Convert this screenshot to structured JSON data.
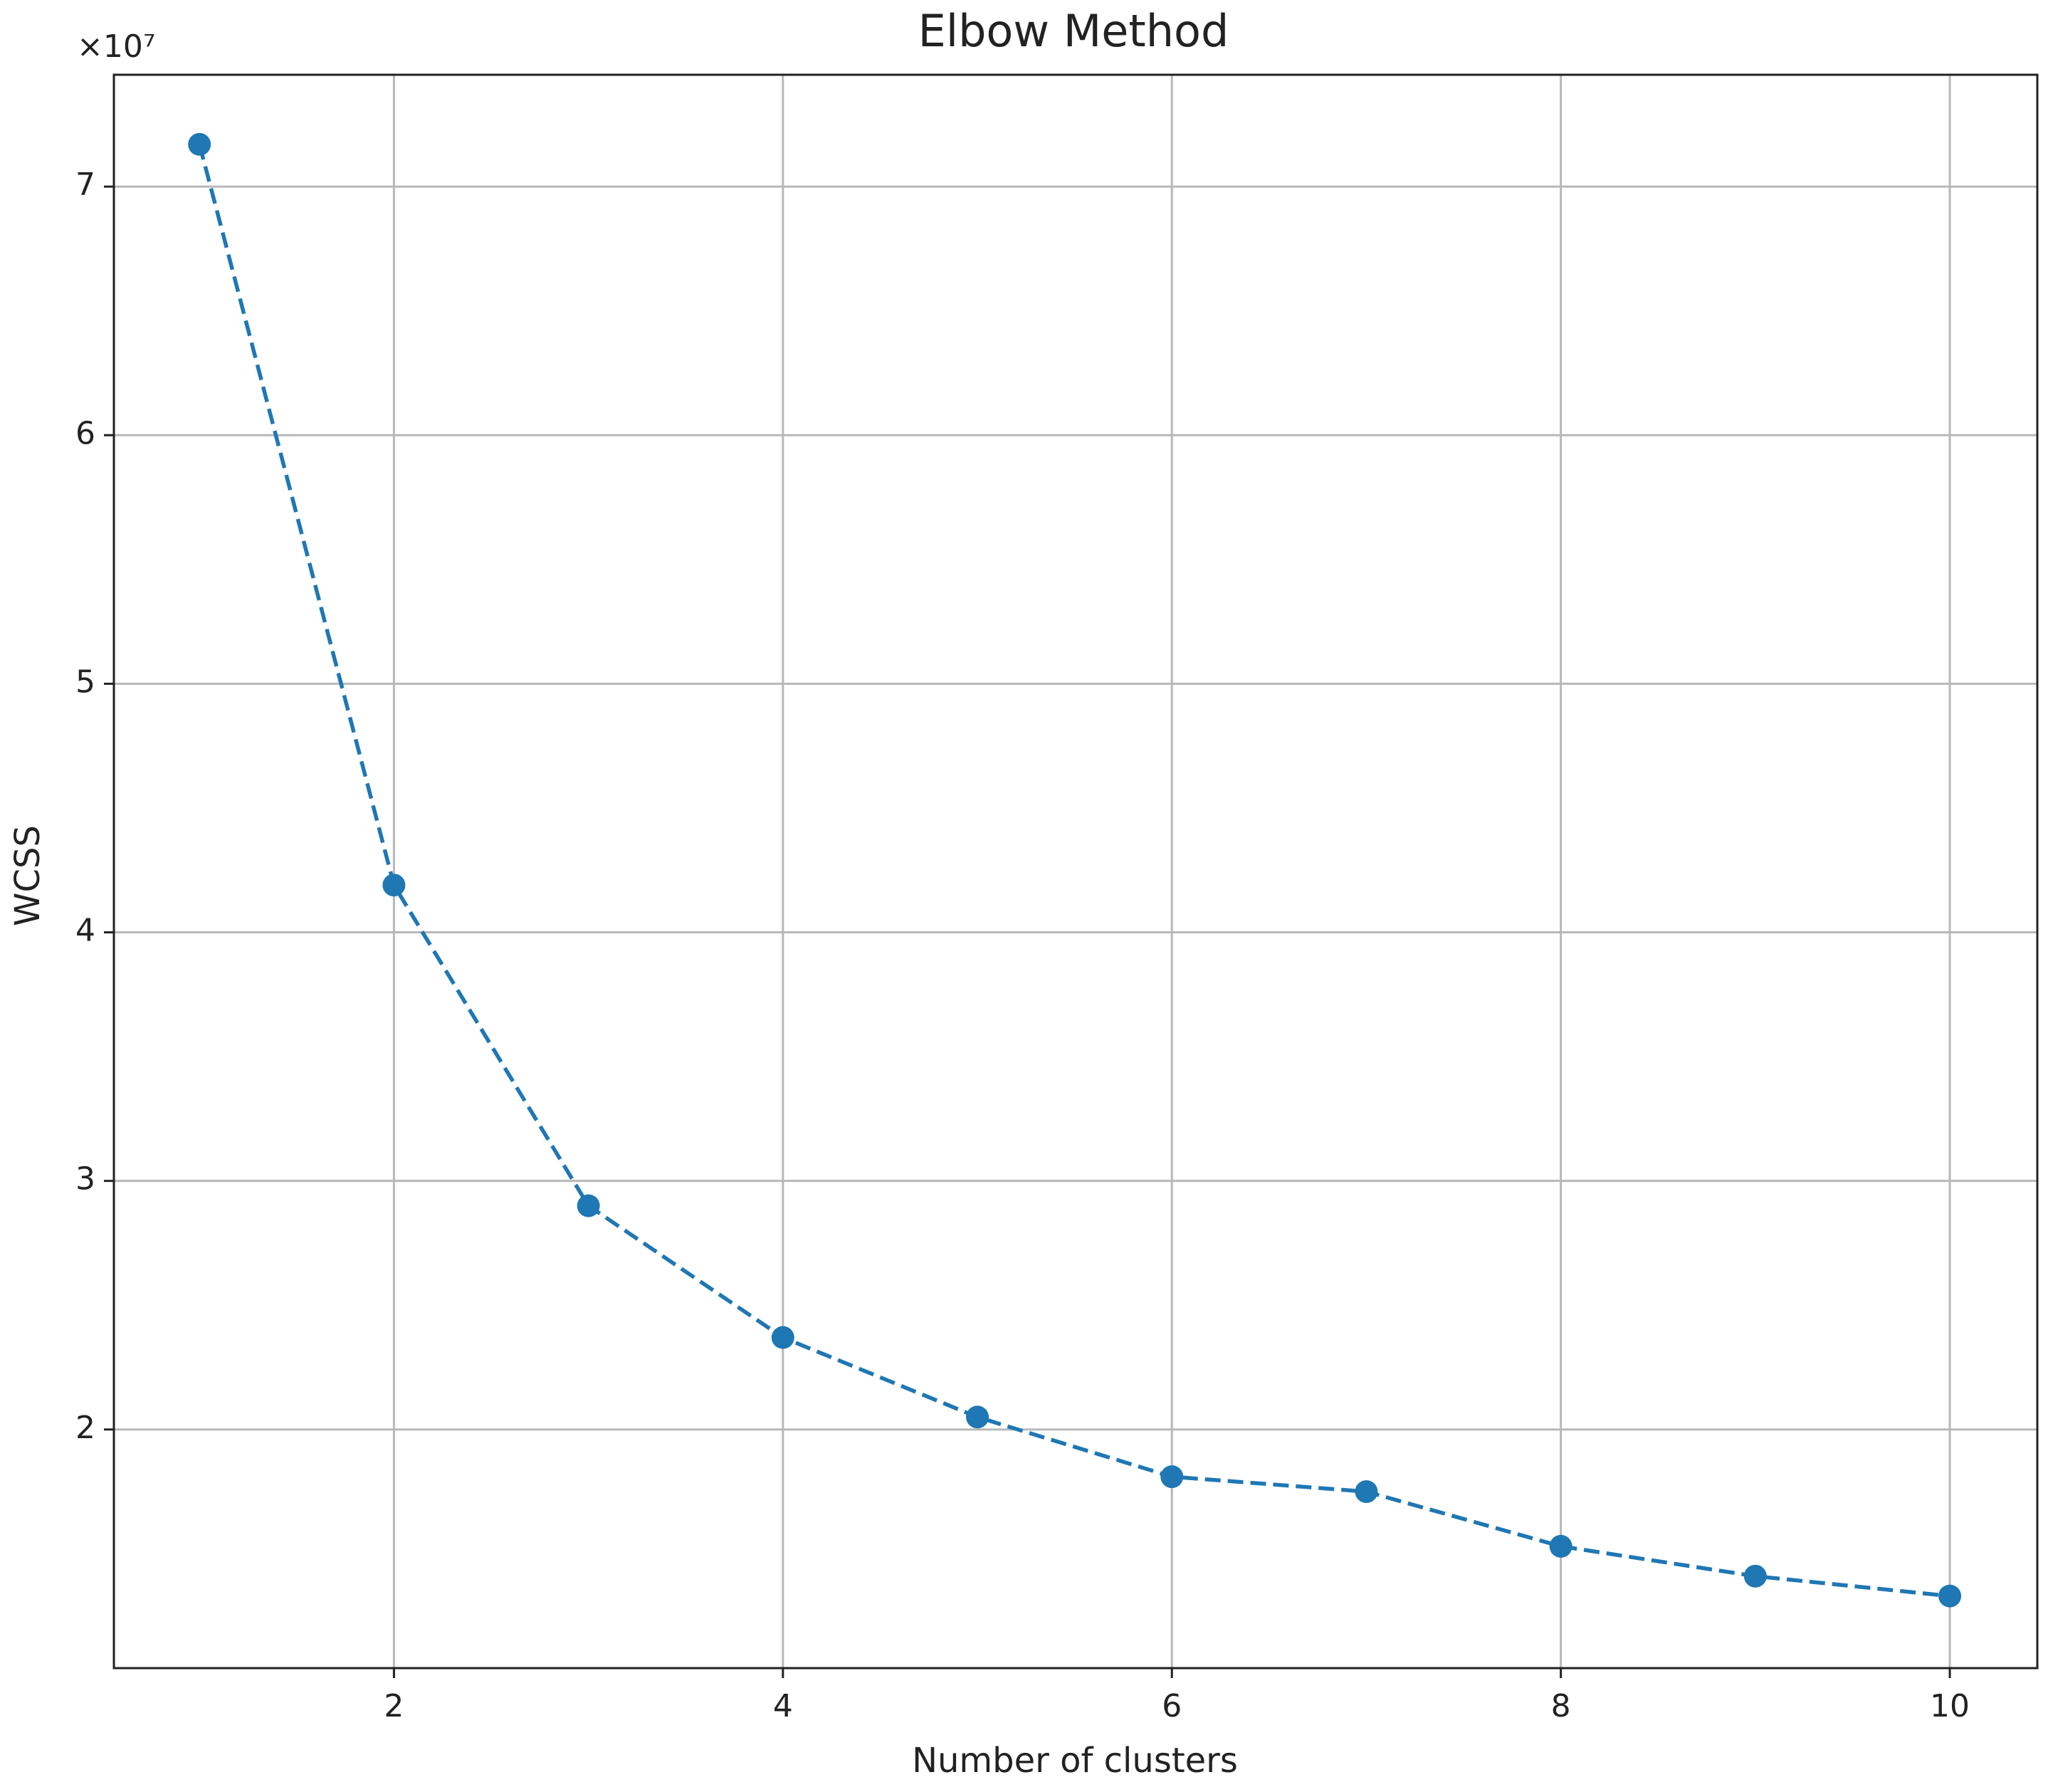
{
  "chart_data": {
    "type": "line",
    "title": "Elbow Method",
    "x_label": "Number of clusters",
    "y_label": "WCSS",
    "y_offset_label": "×10⁷",
    "x": [
      1,
      2,
      3,
      4,
      5,
      6,
      7,
      8,
      9,
      10
    ],
    "series": [
      {
        "name": "WCSS",
        "color": "#1f77b4",
        "values": [
          7.17,
          4.19,
          2.9,
          2.37,
          2.05,
          1.81,
          1.75,
          1.53,
          1.41,
          1.33
        ]
      }
    ],
    "xlim": [
      0.56,
      10.45
    ],
    "xticks": [
      2,
      4,
      6,
      8,
      10
    ],
    "ylim": [
      1.04,
      7.45
    ],
    "yticks": [
      2,
      3,
      4,
      5,
      6,
      7
    ],
    "grid": true,
    "line_style": "dashed",
    "marker": "circle"
  }
}
